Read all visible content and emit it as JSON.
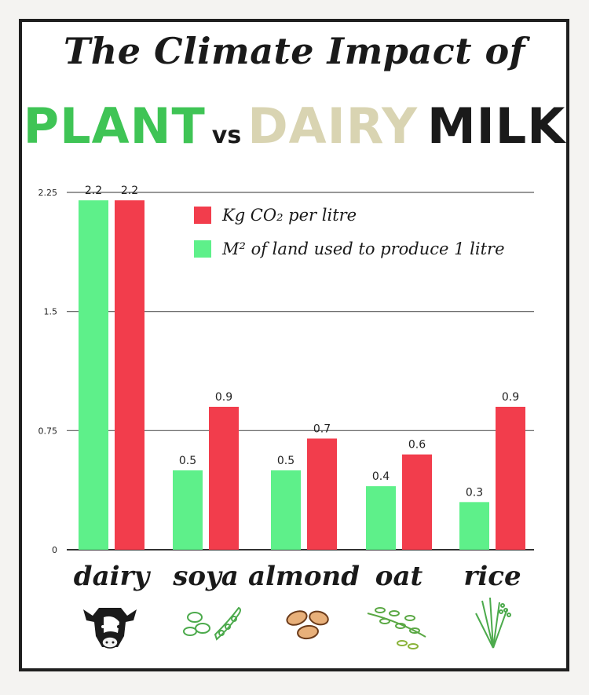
{
  "title": {
    "line1": "The Climate Impact of",
    "plant": "PLANT",
    "vs": "vs",
    "dairy": "DAIRY",
    "milk": "MILK"
  },
  "chart_data": {
    "type": "bar",
    "categories": [
      "dairy",
      "soya",
      "almond",
      "oat",
      "rice"
    ],
    "series": [
      {
        "name": "M² of land used to produce 1 litre",
        "color": "#5ef08a",
        "values": [
          2.2,
          0.5,
          0.5,
          0.4,
          0.3
        ],
        "labels": [
          "2.2",
          "0.5",
          "0.5",
          "0.4",
          "0.3"
        ]
      },
      {
        "name": "Kg CO₂ per litre",
        "color": "#f23d4c",
        "values": [
          2.2,
          0.9,
          0.7,
          0.6,
          0.9
        ],
        "labels": [
          "2.2",
          "0.9",
          "0.7",
          "0.6",
          "0.9"
        ]
      }
    ],
    "yticks": [
      "0",
      "0.75",
      "1.5",
      "2.25"
    ],
    "ylim": [
      0,
      2.25
    ],
    "grid": true,
    "legend_position": "top-right",
    "legend_order": [
      1,
      0
    ]
  },
  "icons": [
    "cow-icon",
    "soybean-icon",
    "almond-icon",
    "oat-icon",
    "rice-icon"
  ]
}
